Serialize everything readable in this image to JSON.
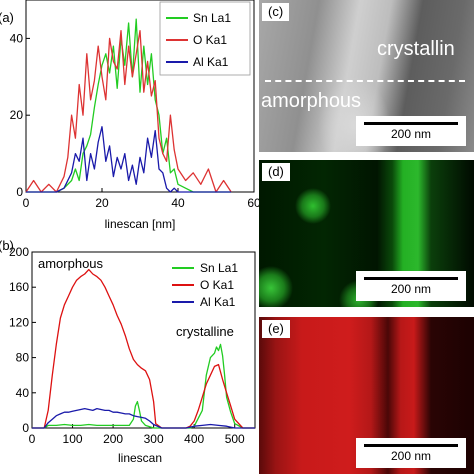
{
  "panels": {
    "a_label": "(a)",
    "b_label": "(b)",
    "c_label": "(c)",
    "d_label": "(d)",
    "e_label": "(e)"
  },
  "micrographs": {
    "c": {
      "label": "(c)",
      "text_crystalline": "crystallin",
      "text_amorphous": "amorphous",
      "scalebar": "200 nm"
    },
    "d": {
      "label": "(d)",
      "scalebar": "200 nm",
      "map_color": "#2cc42c"
    },
    "e": {
      "label": "(e)",
      "scalebar": "200 nm",
      "map_color": "#d01a1a"
    }
  },
  "chart_data": [
    {
      "type": "line",
      "panel": "(a)",
      "xlabel": "linescan [nm]",
      "ylabel": "",
      "xlim": [
        0,
        60
      ],
      "ylim": [
        0,
        50
      ],
      "xticks": [
        0,
        20,
        40,
        60
      ],
      "yticks": [
        0,
        20,
        40
      ],
      "legend_position": "top-right",
      "series": [
        {
          "name": "Sn La1",
          "color": "#22cc22",
          "x": [
            0,
            2,
            4,
            6,
            8,
            10,
            12,
            13,
            14,
            15,
            16,
            17,
            18,
            19,
            20,
            21,
            22,
            23,
            24,
            25,
            26,
            27,
            28,
            29,
            30,
            31,
            32,
            33,
            34,
            35,
            36,
            37,
            38,
            39,
            40,
            42,
            44,
            46,
            48,
            50,
            52,
            54
          ],
          "y": [
            0,
            0,
            0,
            0,
            0,
            1,
            3,
            6,
            3,
            10,
            12,
            15,
            22,
            28,
            33,
            36,
            31,
            38,
            27,
            40,
            33,
            44,
            30,
            45,
            26,
            38,
            28,
            36,
            24,
            20,
            10,
            14,
            5,
            6,
            2,
            1,
            0,
            0,
            0,
            0,
            0,
            0
          ]
        },
        {
          "name": "O Ka1",
          "color": "#dd3333",
          "x": [
            0,
            2,
            4,
            6,
            8,
            10,
            11,
            12,
            13,
            14,
            15,
            16,
            17,
            18,
            19,
            20,
            21,
            22,
            23,
            24,
            25,
            26,
            27,
            28,
            29,
            30,
            31,
            32,
            33,
            34,
            35,
            36,
            37,
            38,
            39,
            40,
            42,
            44,
            46,
            48,
            50,
            52,
            54
          ],
          "y": [
            0,
            3,
            0,
            2,
            0,
            4,
            9,
            20,
            14,
            28,
            20,
            36,
            24,
            29,
            38,
            30,
            24,
            40,
            34,
            32,
            42,
            28,
            38,
            30,
            36,
            42,
            26,
            34,
            25,
            29,
            14,
            10,
            8,
            20,
            11,
            6,
            3,
            5,
            2,
            6,
            0,
            3,
            0
          ]
        },
        {
          "name": "Al Ka1",
          "color": "#1a1aaa",
          "x": [
            0,
            2,
            4,
            6,
            8,
            10,
            12,
            13,
            14,
            15,
            16,
            17,
            18,
            19,
            20,
            21,
            22,
            23,
            24,
            25,
            26,
            27,
            28,
            29,
            30,
            31,
            32,
            33,
            34,
            35,
            36,
            37,
            38,
            39,
            40,
            42,
            44,
            46,
            48,
            50,
            52,
            54
          ],
          "y": [
            0,
            0,
            0,
            0,
            0,
            1,
            5,
            10,
            8,
            14,
            3,
            10,
            6,
            13,
            17,
            8,
            12,
            4,
            9,
            6,
            10,
            3,
            7,
            2,
            9,
            5,
            14,
            9,
            16,
            6,
            5,
            1,
            0,
            1,
            0,
            0,
            0,
            0,
            0,
            0,
            0,
            0
          ]
        }
      ]
    },
    {
      "type": "line",
      "panel": "(b)",
      "xlabel": "linescan",
      "ylabel": "",
      "xlim": [
        0,
        550
      ],
      "ylim": [
        0,
        200
      ],
      "xticks": [
        0,
        100,
        200,
        300,
        400,
        500
      ],
      "yticks": [
        0,
        40,
        80,
        120,
        160,
        200
      ],
      "legend_position": "top-right",
      "annotations": [
        "amorphous",
        "crystalline"
      ],
      "series": [
        {
          "name": "Sn La1",
          "color": "#22cc22",
          "x": [
            0,
            30,
            40,
            60,
            80,
            100,
            120,
            140,
            160,
            180,
            200,
            220,
            240,
            250,
            255,
            260,
            265,
            270,
            280,
            300,
            320,
            360,
            390,
            400,
            420,
            430,
            440,
            450,
            455,
            460,
            465,
            470,
            475,
            480,
            490,
            500,
            520,
            550
          ],
          "y": [
            0,
            0,
            3,
            3,
            4,
            3,
            3,
            4,
            3,
            3,
            3,
            3,
            3,
            10,
            25,
            30,
            20,
            8,
            3,
            0,
            0,
            0,
            0,
            2,
            20,
            60,
            80,
            85,
            92,
            88,
            95,
            82,
            60,
            35,
            18,
            5,
            0,
            0
          ]
        },
        {
          "name": "O Ka1",
          "color": "#dd1111",
          "x": [
            0,
            30,
            40,
            50,
            60,
            70,
            80,
            90,
            100,
            110,
            120,
            130,
            140,
            150,
            160,
            170,
            180,
            190,
            200,
            210,
            220,
            230,
            240,
            250,
            260,
            270,
            280,
            290,
            300,
            305,
            320,
            360,
            380,
            390,
            400,
            410,
            420,
            430,
            440,
            450,
            460,
            470,
            480,
            490,
            500,
            520,
            550
          ],
          "y": [
            0,
            0,
            20,
            60,
            95,
            125,
            140,
            150,
            160,
            168,
            172,
            175,
            180,
            175,
            172,
            168,
            160,
            150,
            140,
            128,
            118,
            105,
            90,
            78,
            72,
            68,
            65,
            55,
            30,
            5,
            0,
            0,
            0,
            2,
            8,
            20,
            35,
            50,
            60,
            70,
            72,
            55,
            40,
            25,
            10,
            0,
            0
          ]
        },
        {
          "name": "Al Ka1",
          "color": "#1a1aaa",
          "x": [
            0,
            30,
            40,
            50,
            60,
            70,
            80,
            90,
            100,
            110,
            120,
            130,
            140,
            150,
            160,
            170,
            180,
            190,
            200,
            210,
            220,
            230,
            240,
            250,
            260,
            270,
            280,
            290,
            300,
            320,
            380,
            400,
            420,
            440,
            460,
            480,
            500,
            550
          ],
          "y": [
            0,
            0,
            6,
            10,
            14,
            16,
            18,
            18,
            19,
            20,
            21,
            22,
            21,
            20,
            22,
            21,
            20,
            20,
            18,
            18,
            17,
            16,
            16,
            14,
            13,
            12,
            11,
            8,
            4,
            0,
            0,
            2,
            3,
            4,
            3,
            2,
            0,
            0
          ]
        }
      ]
    }
  ]
}
